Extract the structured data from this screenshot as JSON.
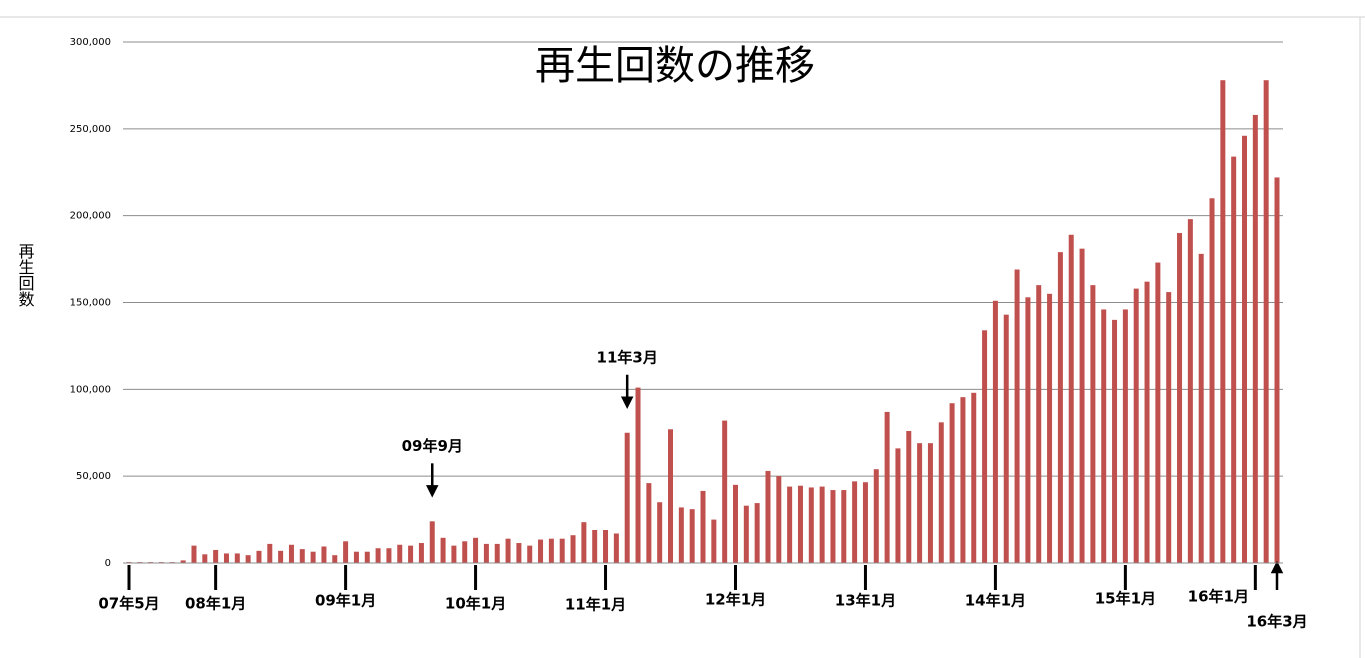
{
  "chart_data": {
    "type": "bar",
    "title": "再生回数の推移",
    "y_label": "再生回数",
    "color": "#c0504d",
    "grid": true,
    "ylim": [
      0,
      300000
    ],
    "yticks": [
      {
        "value": 0,
        "label": "0"
      },
      {
        "value": 50000,
        "label": "50,000"
      },
      {
        "value": 100000,
        "label": "100,000"
      },
      {
        "value": 150000,
        "label": "150,000"
      },
      {
        "value": 200000,
        "label": "200,000"
      },
      {
        "value": 250000,
        "label": "250,000"
      },
      {
        "value": 300000,
        "label": "300,000"
      }
    ],
    "categories": [
      "07年5月",
      null,
      null,
      null,
      null,
      null,
      null,
      null,
      "08年1月",
      null,
      null,
      null,
      null,
      null,
      null,
      null,
      null,
      null,
      null,
      null,
      "09年1月",
      null,
      null,
      null,
      null,
      null,
      null,
      null,
      null,
      null,
      null,
      null,
      "10年1月",
      null,
      null,
      null,
      null,
      null,
      null,
      null,
      null,
      null,
      null,
      null,
      "11年1月",
      null,
      null,
      null,
      null,
      null,
      null,
      null,
      null,
      null,
      null,
      null,
      "12年1月",
      null,
      null,
      null,
      null,
      null,
      null,
      null,
      null,
      null,
      null,
      null,
      "13年1月",
      null,
      null,
      null,
      null,
      null,
      null,
      null,
      null,
      null,
      null,
      null,
      "14年1月",
      null,
      null,
      null,
      null,
      null,
      null,
      null,
      null,
      null,
      null,
      null,
      "15年1月",
      null,
      null,
      null,
      null,
      null,
      null,
      null,
      null,
      null,
      null,
      null,
      "16年1月",
      null,
      "16年3月"
    ],
    "callouts": [
      null,
      null,
      null,
      null,
      null,
      null,
      null,
      null,
      null,
      null,
      null,
      null,
      null,
      null,
      null,
      null,
      null,
      null,
      null,
      null,
      null,
      null,
      null,
      null,
      null,
      null,
      null,
      null,
      "09年9月",
      null,
      null,
      null,
      null,
      null,
      null,
      null,
      null,
      null,
      null,
      null,
      null,
      null,
      null,
      null,
      null,
      null,
      "11年3月",
      null,
      null,
      null,
      null,
      null,
      null,
      null,
      null,
      null,
      null,
      null,
      null,
      null,
      null,
      null,
      null,
      null,
      null,
      null,
      null,
      null,
      null,
      null,
      null,
      null,
      null,
      null,
      null,
      null,
      null,
      null,
      null,
      null,
      null,
      null,
      null,
      null,
      null,
      null,
      null,
      null,
      null,
      null,
      null,
      null,
      null,
      null,
      null,
      null,
      null,
      null,
      null,
      null,
      null,
      null,
      null,
      null,
      null,
      null,
      null
    ],
    "values": [
      500,
      500,
      500,
      500,
      500,
      1500,
      10000,
      5000,
      7500,
      5500,
      5500,
      4500,
      7000,
      11000,
      7000,
      10500,
      8000,
      6500,
      9500,
      4500,
      12500,
      6500,
      6500,
      8500,
      8500,
      10500,
      10000,
      11500,
      24000,
      14500,
      10000,
      12500,
      14500,
      11000,
      11000,
      14000,
      11500,
      10000,
      13500,
      14000,
      14000,
      16000,
      23500,
      19000,
      19000,
      17000,
      75000,
      101000,
      46000,
      35000,
      77000,
      32000,
      31000,
      41500,
      25000,
      82000,
      45000,
      33000,
      34500,
      53000,
      50000,
      44000,
      44500,
      43500,
      44000,
      42000,
      42000,
      47000,
      46500,
      54000,
      87000,
      66000,
      76000,
      69000,
      69000,
      81000,
      92000,
      95500,
      98000,
      134000,
      151000,
      143000,
      169000,
      153000,
      160000,
      155000,
      179000,
      189000,
      181000,
      160000,
      146000,
      140000,
      146000,
      158000,
      162000,
      173000,
      156000,
      190000,
      198000,
      178000,
      210000,
      278000,
      234000,
      246000,
      258000,
      278000,
      222000
    ]
  }
}
